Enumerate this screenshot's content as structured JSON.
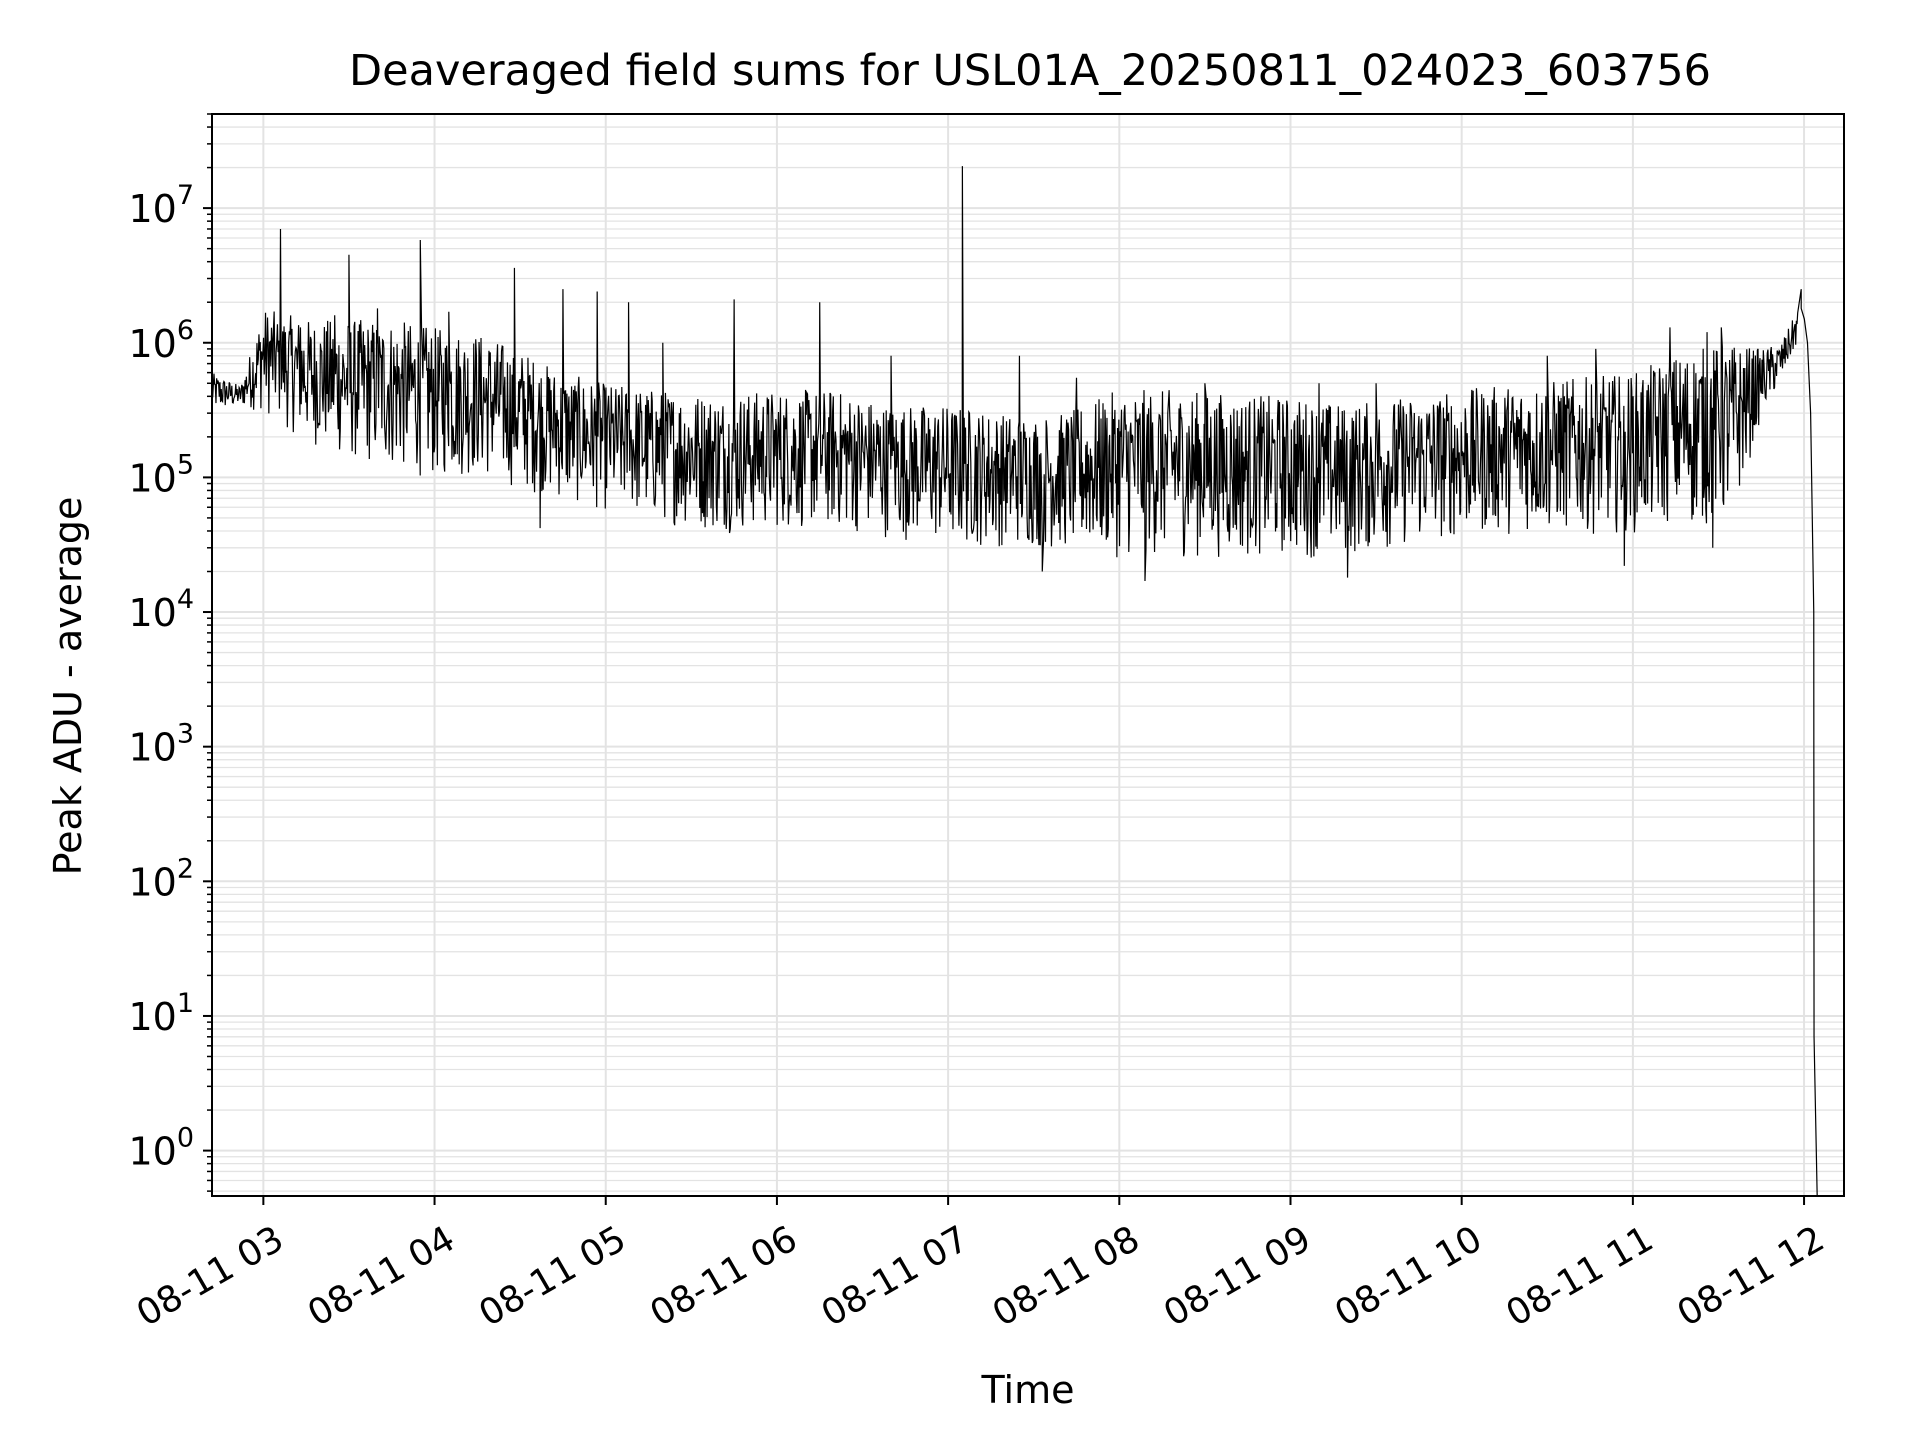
{
  "chart_data": {
    "type": "line",
    "title": "Deaveraged field sums for USL01A_20250811_024023_603756",
    "xlabel": "Time",
    "ylabel": "Peak ADU - average",
    "yscale": "log",
    "ylim": [
      0.46,
      50000000
    ],
    "xlim": [
      "2025-08-11 02:42",
      "2025-08-11 12:14"
    ],
    "grid": true,
    "line_color": "#000000",
    "grid_color": "#e3e3e3",
    "x_ticks": [
      {
        "at": "2025-08-11 03:00",
        "label": "08-11 03"
      },
      {
        "at": "2025-08-11 04:00",
        "label": "08-11 04"
      },
      {
        "at": "2025-08-11 05:00",
        "label": "08-11 05"
      },
      {
        "at": "2025-08-11 06:00",
        "label": "08-11 06"
      },
      {
        "at": "2025-08-11 07:00",
        "label": "08-11 07"
      },
      {
        "at": "2025-08-11 08:00",
        "label": "08-11 08"
      },
      {
        "at": "2025-08-11 09:00",
        "label": "08-11 09"
      },
      {
        "at": "2025-08-11 10:00",
        "label": "08-11 10"
      },
      {
        "at": "2025-08-11 11:00",
        "label": "08-11 11"
      },
      {
        "at": "2025-08-11 12:00",
        "label": "08-11 12"
      }
    ],
    "y_ticks": [
      {
        "value": 1,
        "base": "10",
        "exp": "0"
      },
      {
        "value": 10,
        "base": "10",
        "exp": "1"
      },
      {
        "value": 100,
        "base": "10",
        "exp": "2"
      },
      {
        "value": 1000,
        "base": "10",
        "exp": "3"
      },
      {
        "value": 10000,
        "base": "10",
        "exp": "4"
      },
      {
        "value": 100000,
        "base": "10",
        "exp": "5"
      },
      {
        "value": 1000000,
        "base": "10",
        "exp": "6"
      },
      {
        "value": 10000000,
        "base": "10",
        "exp": "7"
      }
    ],
    "series": [
      {
        "envelope": [
          {
            "t": "2025-08-11 02:42",
            "lo": 300000,
            "hi": 600000
          },
          {
            "t": "2025-08-11 02:52",
            "lo": 330000,
            "hi": 480000
          },
          {
            "t": "2025-08-11 03:00",
            "lo": 300000,
            "hi": 1800000
          },
          {
            "t": "2025-08-11 03:15",
            "lo": 180000,
            "hi": 1500000
          },
          {
            "t": "2025-08-11 03:30",
            "lo": 130000,
            "hi": 1500000
          },
          {
            "t": "2025-08-11 03:45",
            "lo": 110000,
            "hi": 1500000
          },
          {
            "t": "2025-08-11 04:00",
            "lo": 95000,
            "hi": 1300000
          },
          {
            "t": "2025-08-11 04:15",
            "lo": 100000,
            "hi": 1200000
          },
          {
            "t": "2025-08-11 04:30",
            "lo": 80000,
            "hi": 900000
          },
          {
            "t": "2025-08-11 04:45",
            "lo": 65000,
            "hi": 600000
          },
          {
            "t": "2025-08-11 05:00",
            "lo": 55000,
            "hi": 500000
          },
          {
            "t": "2025-08-11 05:20",
            "lo": 45000,
            "hi": 450000
          },
          {
            "t": "2025-08-11 05:40",
            "lo": 38000,
            "hi": 420000
          },
          {
            "t": "2025-08-11 06:00",
            "lo": 40000,
            "hi": 450000
          },
          {
            "t": "2025-08-11 06:20",
            "lo": 40000,
            "hi": 450000
          },
          {
            "t": "2025-08-11 06:40",
            "lo": 35000,
            "hi": 350000
          },
          {
            "t": "2025-08-11 07:00",
            "lo": 30000,
            "hi": 350000
          },
          {
            "t": "2025-08-11 07:20",
            "lo": 30000,
            "hi": 300000
          },
          {
            "t": "2025-08-11 07:40",
            "lo": 28000,
            "hi": 300000
          },
          {
            "t": "2025-08-11 08:00",
            "lo": 25000,
            "hi": 450000
          },
          {
            "t": "2025-08-11 08:20",
            "lo": 25000,
            "hi": 450000
          },
          {
            "t": "2025-08-11 08:40",
            "lo": 25000,
            "hi": 420000
          },
          {
            "t": "2025-08-11 09:00",
            "lo": 25000,
            "hi": 400000
          },
          {
            "t": "2025-08-11 09:20",
            "lo": 25000,
            "hi": 350000
          },
          {
            "t": "2025-08-11 09:40",
            "lo": 30000,
            "hi": 400000
          },
          {
            "t": "2025-08-11 10:00",
            "lo": 35000,
            "hi": 450000
          },
          {
            "t": "2025-08-11 10:20",
            "lo": 38000,
            "hi": 500000
          },
          {
            "t": "2025-08-11 10:40",
            "lo": 38000,
            "hi": 550000
          },
          {
            "t": "2025-08-11 11:00",
            "lo": 38000,
            "hi": 600000
          },
          {
            "t": "2025-08-11 11:20",
            "lo": 40000,
            "hi": 900000
          },
          {
            "t": "2025-08-11 11:35",
            "lo": 45000,
            "hi": 1000000
          },
          {
            "t": "2025-08-11 11:45",
            "lo": 280000,
            "hi": 900000
          },
          {
            "t": "2025-08-11 11:52",
            "lo": 500000,
            "hi": 1000000
          },
          {
            "t": "2025-08-11 11:58",
            "lo": 1000000,
            "hi": 1800000
          }
        ],
        "spikes": [
          {
            "t": "2025-08-11 03:06",
            "y": 7000000
          },
          {
            "t": "2025-08-11 03:13",
            "y": 1300000
          },
          {
            "t": "2025-08-11 03:25",
            "y": 1600000
          },
          {
            "t": "2025-08-11 03:30",
            "y": 4500000
          },
          {
            "t": "2025-08-11 03:40",
            "y": 1800000
          },
          {
            "t": "2025-08-11 03:55",
            "y": 5800000
          },
          {
            "t": "2025-08-11 04:05",
            "y": 1700000
          },
          {
            "t": "2025-08-11 04:28",
            "y": 3600000
          },
          {
            "t": "2025-08-11 04:45",
            "y": 2500000
          },
          {
            "t": "2025-08-11 04:57",
            "y": 2400000
          },
          {
            "t": "2025-08-11 05:08",
            "y": 2000000
          },
          {
            "t": "2025-08-11 05:20",
            "y": 1000000
          },
          {
            "t": "2025-08-11 05:45",
            "y": 2100000
          },
          {
            "t": "2025-08-11 06:15",
            "y": 2000000
          },
          {
            "t": "2025-08-11 06:40",
            "y": 800000
          },
          {
            "t": "2025-08-11 07:05",
            "y": 20500000
          },
          {
            "t": "2025-08-11 07:25",
            "y": 800000
          },
          {
            "t": "2025-08-11 07:33",
            "y": 1000000
          },
          {
            "t": "2025-08-11 07:45",
            "y": 550000
          },
          {
            "t": "2025-08-11 08:30",
            "y": 500000
          },
          {
            "t": "2025-08-11 09:10",
            "y": 500000
          },
          {
            "t": "2025-08-11 09:30",
            "y": 500000
          },
          {
            "t": "2025-08-11 10:30",
            "y": 800000
          },
          {
            "t": "2025-08-11 10:47",
            "y": 900000
          },
          {
            "t": "2025-08-11 11:13",
            "y": 1300000
          },
          {
            "t": "2025-08-11 11:26",
            "y": 1200000
          },
          {
            "t": "2025-08-11 11:31",
            "y": 1300000
          },
          {
            "t": "2025-08-11 11:59",
            "y": 2500000
          }
        ],
        "dips": [
          {
            "t": "2025-08-11 04:37",
            "y": 42000
          },
          {
            "t": "2025-08-11 07:33",
            "y": 20000
          },
          {
            "t": "2025-08-11 08:09",
            "y": 17000
          },
          {
            "t": "2025-08-11 09:20",
            "y": 18000
          },
          {
            "t": "2025-08-11 10:57",
            "y": 22000
          },
          {
            "t": "2025-08-11 11:28",
            "y": 30000
          }
        ],
        "tail": [
          {
            "t": "2025-08-11 11:59",
            "y": 1800000
          },
          {
            "t": "2025-08-11 12:00",
            "y": 1500000
          },
          {
            "t": "2025-08-11 12:01",
            "y": 1000000
          },
          {
            "t": "2025-08-11 12:02",
            "y": 300000
          },
          {
            "t": "2025-08-11 12:03",
            "y": 10000
          },
          {
            "t": "2025-08-11 12:03",
            "y": 7
          },
          {
            "t": "2025-08-11 12:04",
            "y": 0.46
          }
        ]
      }
    ]
  }
}
